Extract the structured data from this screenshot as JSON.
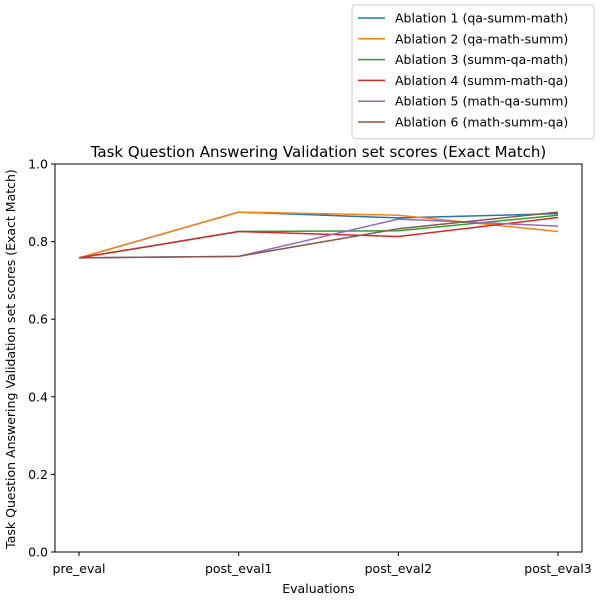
{
  "chart_data": {
    "type": "line",
    "title": "Task Question Answering Validation set scores (Exact Match)",
    "xlabel": "Evaluations",
    "ylabel": "Task Question Answering Validation set scores (Exact Match)",
    "categories": [
      "pre_eval",
      "post_eval1",
      "post_eval2",
      "post_eval3"
    ],
    "ylim": [
      0,
      1.0
    ],
    "yticks": [
      "0.0",
      "0.2",
      "0.4",
      "0.6",
      "0.8",
      "1.0"
    ],
    "ytick_values": [
      0,
      0.2,
      0.4,
      0.6,
      0.8,
      1.0
    ],
    "grid": false,
    "legend_position": "top-right",
    "series": [
      {
        "name": "Ablation 1 (qa-summ-math)",
        "color": "#1f77b4",
        "values": [
          0.758,
          0.876,
          0.861,
          0.872
        ]
      },
      {
        "name": "Ablation 2 (qa-math-summ)",
        "color": "#ff7f0e",
        "values": [
          0.758,
          0.876,
          0.868,
          0.826
        ]
      },
      {
        "name": "Ablation 3 (summ-qa-math)",
        "color": "#2ca02c",
        "values": [
          0.758,
          0.826,
          0.828,
          0.868
        ]
      },
      {
        "name": "Ablation 4 (summ-math-qa)",
        "color": "#d62728",
        "values": [
          0.758,
          0.826,
          0.813,
          0.862
        ]
      },
      {
        "name": "Ablation 5 (math-qa-summ)",
        "color": "#9467bd",
        "values": [
          0.758,
          0.762,
          0.858,
          0.84
        ]
      },
      {
        "name": "Ablation 6 (math-summ-qa)",
        "color": "#8c564b",
        "values": [
          0.758,
          0.762,
          0.833,
          0.876
        ]
      }
    ]
  }
}
